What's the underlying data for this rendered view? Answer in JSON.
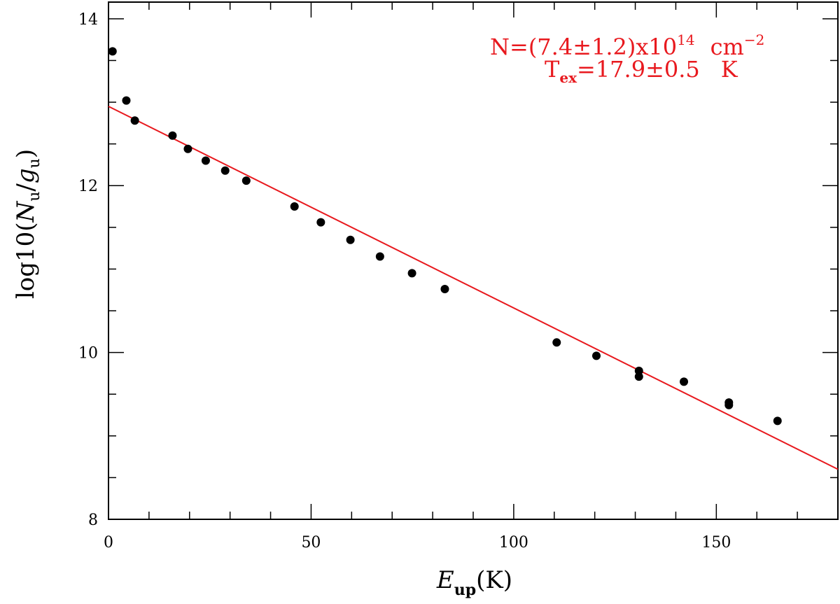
{
  "chart_data": {
    "type": "scatter",
    "xlim": [
      0,
      180
    ],
    "ylim": [
      8,
      14.2
    ],
    "x_ticks": [
      0,
      50,
      100,
      150
    ],
    "x_tick_labels": [
      "0",
      "50",
      "100",
      "150"
    ],
    "x_minor_step": 10,
    "y_ticks": [
      8,
      10,
      12,
      14
    ],
    "y_tick_labels": [
      "8",
      "10",
      "12",
      "14"
    ],
    "y_minor_step": 0.5,
    "xlabel": {
      "main": "E",
      "sub": "up",
      "rest": "(K)"
    },
    "ylabel": {
      "pre": "log10(",
      "n": "N",
      "n_sub": "u",
      "slash": "/",
      "g": "g",
      "g_sub": "u",
      "post": ")"
    },
    "points": [
      {
        "x": 1.0,
        "y": 13.61
      },
      {
        "x": 4.4,
        "y": 13.02
      },
      {
        "x": 6.5,
        "y": 12.78
      },
      {
        "x": 15.8,
        "y": 12.6
      },
      {
        "x": 19.6,
        "y": 12.44
      },
      {
        "x": 24.0,
        "y": 12.3
      },
      {
        "x": 28.8,
        "y": 12.18
      },
      {
        "x": 34.0,
        "y": 12.06
      },
      {
        "x": 45.9,
        "y": 11.75
      },
      {
        "x": 52.4,
        "y": 11.56
      },
      {
        "x": 59.7,
        "y": 11.35
      },
      {
        "x": 67.0,
        "y": 11.15
      },
      {
        "x": 74.9,
        "y": 10.95
      },
      {
        "x": 83.0,
        "y": 10.76
      },
      {
        "x": 110.6,
        "y": 10.12
      },
      {
        "x": 120.4,
        "y": 9.96
      },
      {
        "x": 130.9,
        "y": 9.78
      },
      {
        "x": 130.9,
        "y": 9.71
      },
      {
        "x": 142.0,
        "y": 9.65
      },
      {
        "x": 153.1,
        "y": 9.4
      },
      {
        "x": 153.1,
        "y": 9.37
      },
      {
        "x": 165.1,
        "y": 9.18
      }
    ],
    "fit_line": {
      "x": [
        0,
        180
      ],
      "y": [
        12.95,
        8.6
      ],
      "color": "#e8191e"
    },
    "annotation": {
      "color": "#e8191e",
      "line1": {
        "main": "N=(7.4±1.2)x10",
        "sup": "14",
        "unit": "cm",
        "unit_sup": "−2"
      },
      "line2": {
        "main": "T",
        "sub": "ex",
        "rest": "=17.9±0.5",
        "unit": "K"
      }
    },
    "grid": false,
    "legend": "none"
  }
}
